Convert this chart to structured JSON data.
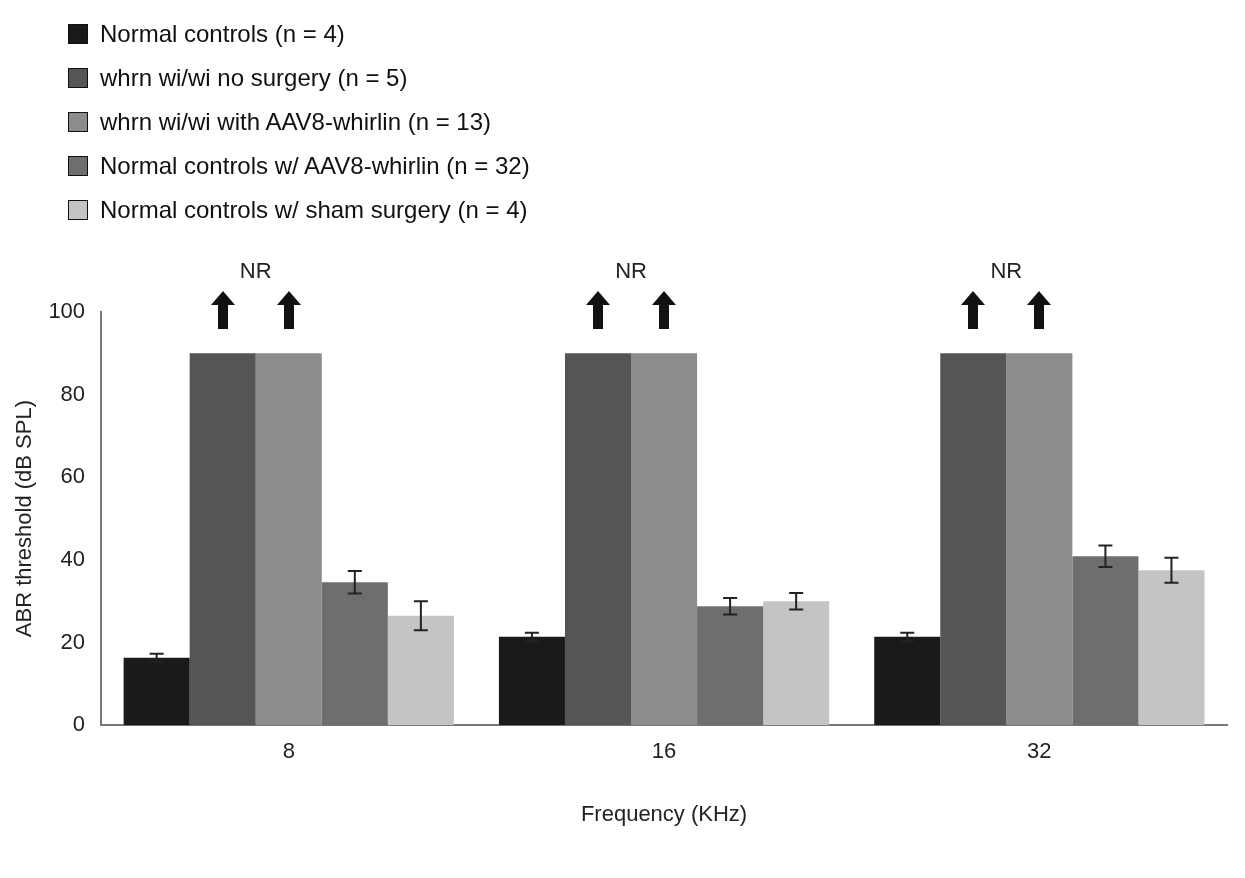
{
  "chart_data": {
    "type": "bar",
    "xlabel": "Frequency (KHz)",
    "ylabel": "ABR threshold (dB SPL)",
    "categories": [
      "8",
      "16",
      "32"
    ],
    "series": [
      {
        "name": "Normal controls (n = 4)",
        "color": "#1a1a1a",
        "values": [
          16.3,
          21.4,
          21.4
        ],
        "errors": [
          1,
          1,
          1
        ]
      },
      {
        "name": "whrn wi/wi no surgery (n = 5)",
        "color": "#555555",
        "values": [
          90,
          90,
          90
        ]
      },
      {
        "name": "whrn wi/wi with AAV8-whirlin (n = 13)",
        "color": "#8c8c8c",
        "values": [
          90,
          90,
          90
        ]
      },
      {
        "name": "Normal controls w/ AAV8-whirlin (n = 32)",
        "color": "#6e6e6e",
        "values": [
          34.6,
          28.8,
          40.9
        ],
        "errors": [
          2.7,
          2,
          2.6
        ]
      },
      {
        "name": "Normal controls w/ sham surgery (n = 4)",
        "color": "#c4c4c4",
        "values": [
          26.5,
          30,
          37.5
        ],
        "errors": [
          3.5,
          2,
          3
        ]
      }
    ],
    "ylim": [
      0,
      100
    ],
    "yticks": [
      0,
      20,
      40,
      60,
      80,
      100
    ],
    "annotations": [
      "NR",
      "NR",
      "NR"
    ],
    "grid": false,
    "legend": "top left"
  }
}
